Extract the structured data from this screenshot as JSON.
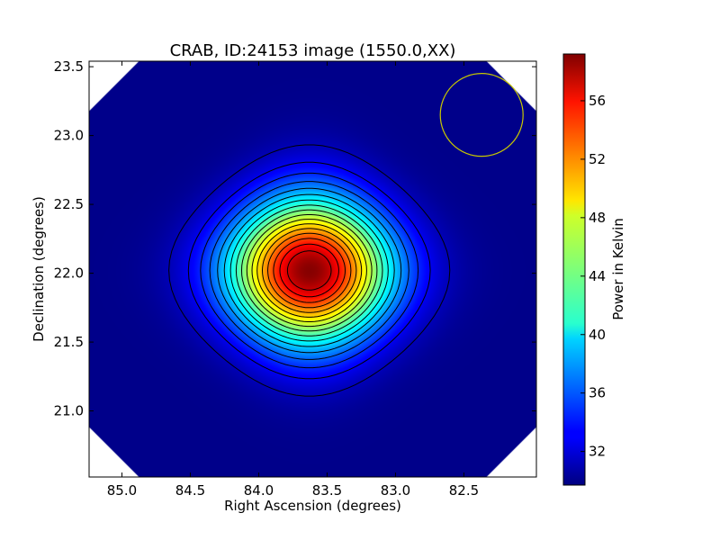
{
  "chart_data": {
    "type": "heatmap",
    "title": "CRAB, ID:24153 image (1550.0,XX)",
    "xlabel": "Right Ascension (degrees)",
    "ylabel": "Declination (degrees)",
    "xlim": [
      85.24,
      81.97
    ],
    "ylim": [
      20.52,
      23.54
    ],
    "x_ticks": [
      85.0,
      84.5,
      84.0,
      83.5,
      83.0,
      82.5
    ],
    "x_tick_labels": [
      "85.0",
      "84.5",
      "84.0",
      "83.5",
      "83.0",
      "82.5"
    ],
    "y_ticks": [
      21.0,
      21.5,
      22.0,
      22.5,
      23.0,
      23.5
    ],
    "y_tick_labels": [
      "21.0",
      "21.5",
      "22.0",
      "22.5",
      "23.0",
      "23.5"
    ],
    "colorbar": {
      "label": "Power in Kelvin",
      "min": 29.7,
      "max": 59.2,
      "ticks": [
        32,
        36,
        40,
        44,
        48,
        52,
        56
      ],
      "tick_labels": [
        "32",
        "36",
        "40",
        "44",
        "48",
        "52",
        "56"
      ],
      "colormap": "jet"
    },
    "source_peak": {
      "ra": 83.63,
      "dec": 22.02,
      "value": 59.0
    },
    "background_level": 30.0,
    "contour_levels": [
      31.3,
      32.9,
      34.5,
      36.1,
      37.7,
      39.3,
      40.9,
      42.5,
      44.1,
      45.7,
      47.3,
      48.9,
      50.5,
      52.1,
      53.7,
      55.3,
      56.9
    ],
    "beam_circle": {
      "ra": 82.37,
      "dec": 23.15,
      "color": "#c8c800"
    },
    "grid": false,
    "legend": "none"
  }
}
